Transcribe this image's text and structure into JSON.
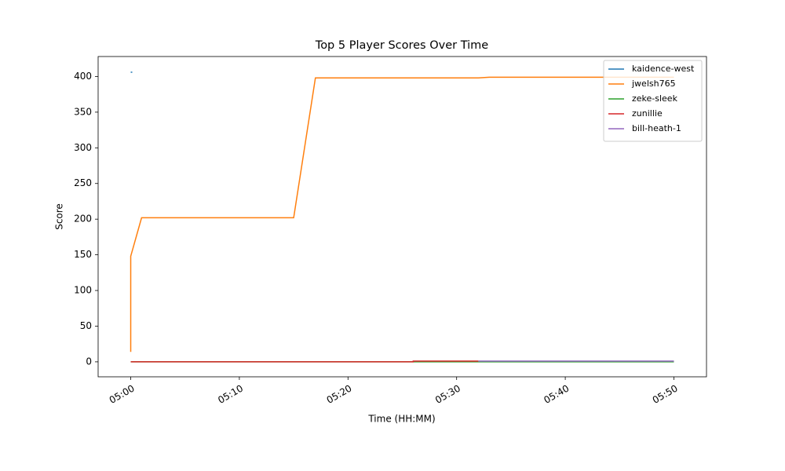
{
  "chart_data": {
    "type": "line",
    "title": "Top 5 Player Scores Over Time",
    "x_label": "Time (HH:MM)",
    "y_label": "Score",
    "xlim": [
      "04:57",
      "05:53"
    ],
    "xticks": [
      "05:00",
      "05:10",
      "05:20",
      "05:30",
      "05:40",
      "05:50"
    ],
    "ylim": [
      -21,
      428
    ],
    "yticks": [
      0,
      50,
      100,
      150,
      200,
      250,
      300,
      350,
      400
    ],
    "legend": "upper right",
    "grid": false,
    "series": [
      {
        "name": "kaidence-west",
        "color": "#1f77b4",
        "x": [
          "05:00",
          "05:00"
        ],
        "values": [
          406,
          406
        ]
      },
      {
        "name": "jwelsh765",
        "color": "#ff7f0e",
        "x": [
          "05:00",
          "05:00",
          "05:01",
          "05:15",
          "05:17",
          "05:32",
          "05:33",
          "05:50"
        ],
        "values": [
          14,
          148,
          202,
          202,
          398,
          398,
          399,
          399
        ]
      },
      {
        "name": "zeke-sleek",
        "color": "#2ca02c",
        "x": [
          "05:00",
          "05:50"
        ],
        "values": [
          0,
          0
        ]
      },
      {
        "name": "zunillie",
        "color": "#d62728",
        "x": [
          "05:00",
          "05:26",
          "05:26",
          "05:32"
        ],
        "values": [
          0,
          0,
          1,
          1
        ]
      },
      {
        "name": "bill-heath-1",
        "color": "#9467bd",
        "x": [
          "05:32",
          "05:50"
        ],
        "values": [
          1,
          1
        ]
      }
    ]
  }
}
